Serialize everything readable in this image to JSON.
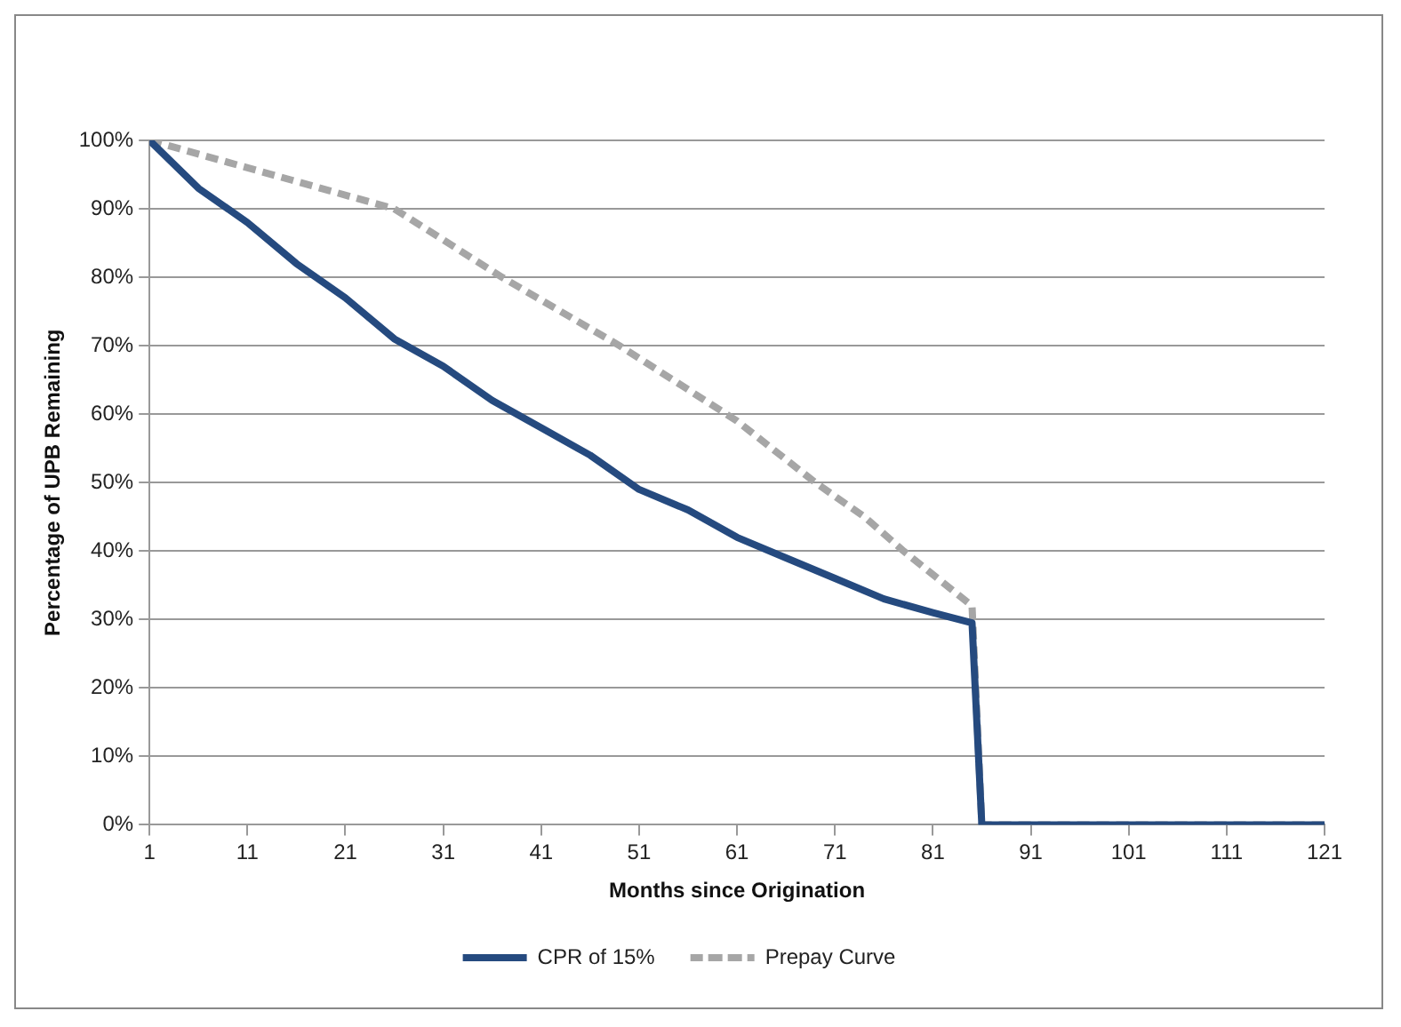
{
  "chart_data": {
    "type": "line",
    "xlabel": "Months since Origination",
    "ylabel": "Percentage of UPB Remaining",
    "xlim": [
      1,
      121
    ],
    "xticks": [
      1,
      11,
      21,
      31,
      41,
      51,
      61,
      71,
      81,
      91,
      101,
      111,
      121
    ],
    "ylim": [
      0,
      100
    ],
    "yticks": [
      {
        "value": 0,
        "label": "0%"
      },
      {
        "value": 10,
        "label": "10%"
      },
      {
        "value": 20,
        "label": "20%"
      },
      {
        "value": 30,
        "label": "30%"
      },
      {
        "value": 40,
        "label": "40%"
      },
      {
        "value": 50,
        "label": "50%"
      },
      {
        "value": 60,
        "label": "60%"
      },
      {
        "value": 70,
        "label": "70%"
      },
      {
        "value": 80,
        "label": "80%"
      },
      {
        "value": 90,
        "label": "90%"
      },
      {
        "value": 100,
        "label": "100%"
      }
    ],
    "grid": "y",
    "legend": "bottom",
    "marker": "none",
    "series": [
      {
        "name": "CPR of 15%",
        "color": "#254a7f",
        "line_style": "solid",
        "x": [
          1,
          6,
          11,
          16,
          21,
          26,
          31,
          36,
          41,
          46,
          51,
          56,
          61,
          66,
          71,
          76,
          81,
          85,
          86,
          121
        ],
        "values": [
          100,
          93,
          88,
          82,
          77,
          71,
          67,
          62,
          58,
          54,
          49,
          46,
          42,
          39,
          36,
          33,
          31,
          29.5,
          0,
          0
        ]
      },
      {
        "name": "Prepay Curve",
        "color": "#a6a6a6",
        "line_style": "dashed",
        "x": [
          1,
          26,
          37,
          49,
          61,
          69,
          74,
          78,
          85,
          86,
          121
        ],
        "values": [
          100,
          90,
          80,
          70,
          59,
          50,
          45,
          40,
          32,
          0,
          0
        ]
      }
    ]
  }
}
